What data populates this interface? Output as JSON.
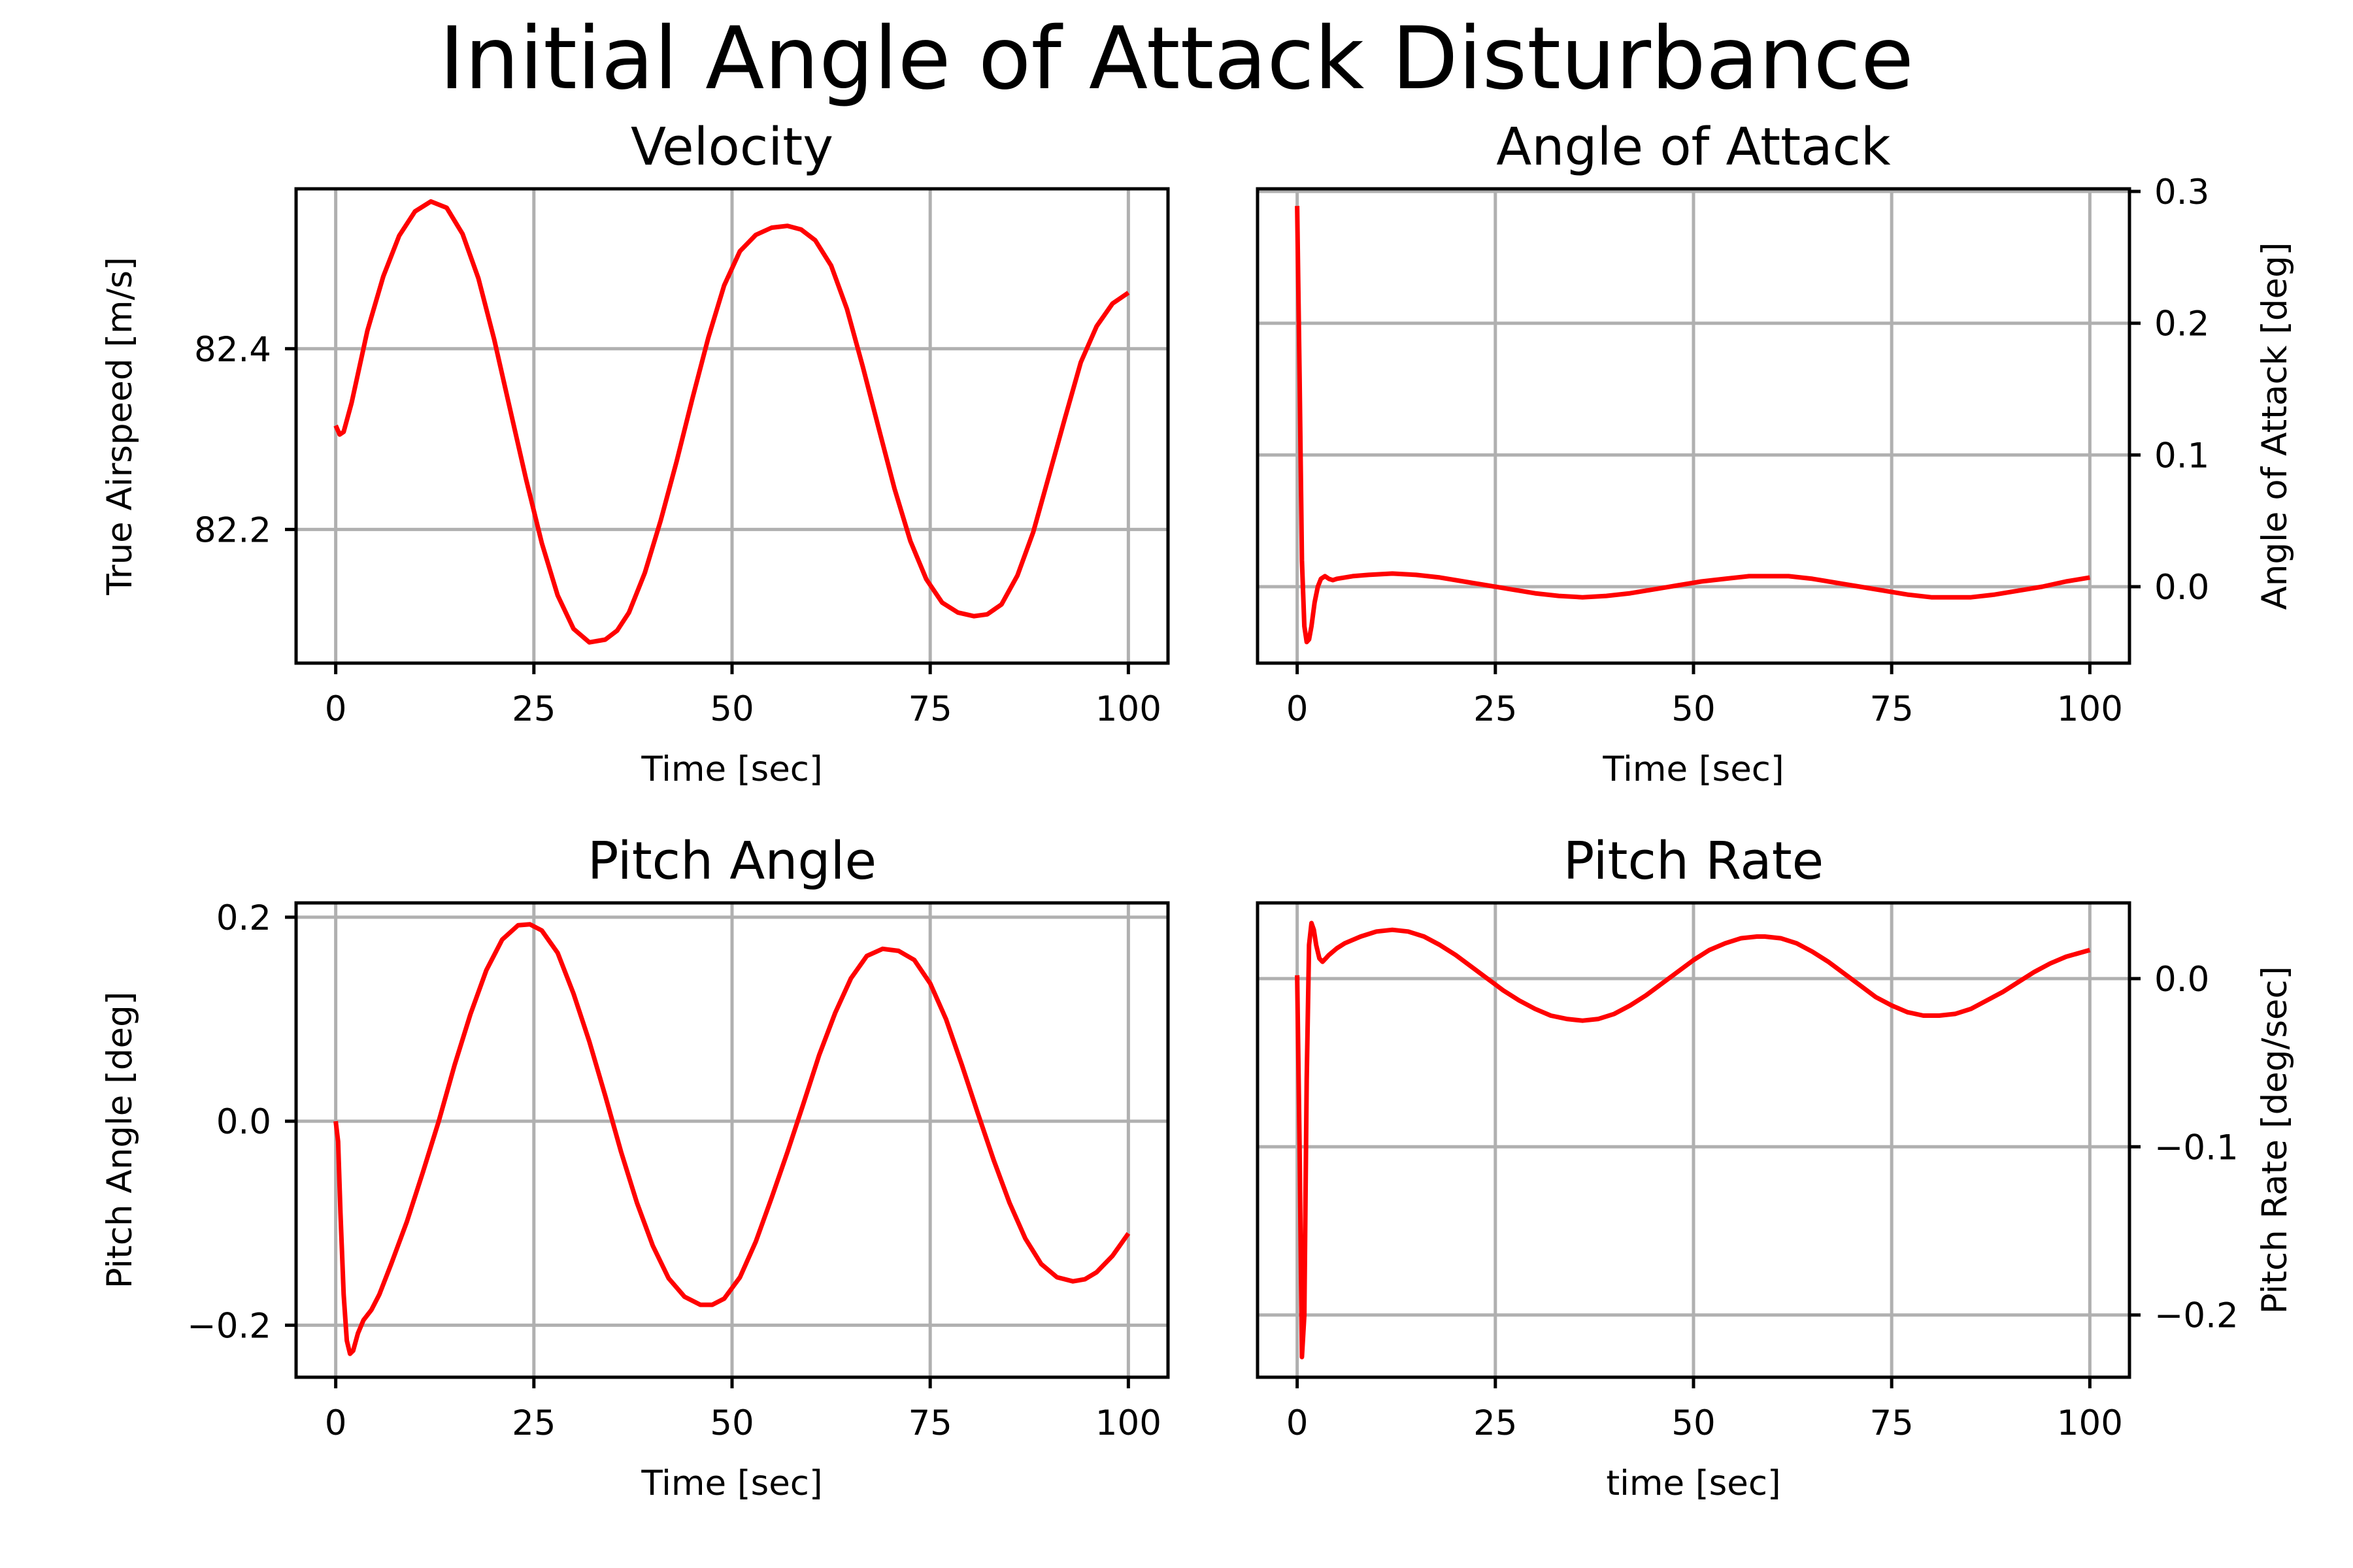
{
  "figure": {
    "suptitle": "Initial Angle of Attack Disturbance",
    "line_color": "#ff0000",
    "grid_color": "#b0b0b0"
  },
  "chart_data": [
    {
      "type": "line",
      "title": "Velocity",
      "xlabel": "Time [sec]",
      "ylabel": "True Airspeed [m/s]",
      "ylabel_side": "left",
      "grid": true,
      "xlim": [
        -5,
        105
      ],
      "ylim": [
        82.052,
        82.577
      ],
      "xticks": [
        0,
        25,
        50,
        75,
        100
      ],
      "xtick_labels": [
        "0",
        "25",
        "50",
        "75",
        "100"
      ],
      "yticks": [
        82.2,
        82.4
      ],
      "ytick_labels": [
        "82.2",
        "82.4"
      ],
      "series": [
        {
          "color": "#ff0000",
          "x": [
            0,
            0.5,
            1,
            2,
            4,
            6,
            8,
            10,
            12,
            14,
            16,
            18,
            20,
            22,
            24,
            26,
            28,
            30,
            32,
            34,
            35.5,
            37,
            39,
            41,
            43,
            45,
            47,
            49,
            51,
            53,
            55,
            57,
            58.7,
            60.5,
            62.5,
            64.5,
            66.5,
            68.5,
            70.5,
            72.5,
            74.5,
            76.5,
            78.5,
            80.5,
            82.2,
            84,
            86,
            88,
            90,
            92,
            94,
            96,
            98,
            100
          ],
          "y": [
            82.315,
            82.305,
            82.308,
            82.34,
            82.42,
            82.48,
            82.525,
            82.552,
            82.563,
            82.556,
            82.527,
            82.478,
            82.41,
            82.333,
            82.256,
            82.185,
            82.127,
            82.09,
            82.075,
            82.078,
            82.088,
            82.108,
            82.152,
            82.21,
            82.275,
            82.345,
            82.412,
            82.47,
            82.508,
            82.526,
            82.534,
            82.536,
            82.532,
            82.52,
            82.492,
            82.444,
            82.38,
            82.312,
            82.245,
            82.187,
            82.145,
            82.119,
            82.108,
            82.104,
            82.106,
            82.117,
            82.149,
            82.197,
            82.26,
            82.323,
            82.385,
            82.425,
            82.45,
            82.462
          ]
        }
      ]
    },
    {
      "type": "line",
      "title": "Angle of Attack",
      "xlabel": "Time [sec]",
      "ylabel": "Angle of Attack [deg]",
      "ylabel_side": "right",
      "grid": true,
      "xlim": [
        -5,
        105
      ],
      "ylim": [
        -0.058,
        0.302
      ],
      "xticks": [
        0,
        25,
        50,
        75,
        100
      ],
      "xtick_labels": [
        "0",
        "25",
        "50",
        "75",
        "100"
      ],
      "yticks": [
        0.0,
        0.1,
        0.2,
        0.3
      ],
      "ytick_labels": [
        "0.0",
        "0.1",
        "0.2",
        "0.3"
      ],
      "series": [
        {
          "color": "#ff0000",
          "x": [
            0,
            0.3,
            0.6,
            0.9,
            1.2,
            1.5,
            1.8,
            2.2,
            2.6,
            3.0,
            3.5,
            4.0,
            4.5,
            5,
            7,
            9,
            12,
            15,
            18,
            21,
            24,
            27,
            30,
            33,
            36,
            39,
            42,
            45,
            48,
            51,
            54,
            57,
            59,
            62,
            65,
            68,
            71,
            74,
            77,
            80,
            82,
            85,
            88,
            91,
            94,
            97,
            100
          ],
          "y": [
            0.289,
            0.16,
            0.02,
            -0.03,
            -0.042,
            -0.04,
            -0.03,
            -0.012,
            0.0,
            0.006,
            0.008,
            0.006,
            0.005,
            0.006,
            0.008,
            0.009,
            0.01,
            0.009,
            0.007,
            0.004,
            0.001,
            -0.002,
            -0.005,
            -0.007,
            -0.008,
            -0.007,
            -0.005,
            -0.002,
            0.001,
            0.004,
            0.006,
            0.008,
            0.008,
            0.008,
            0.006,
            0.003,
            0.0,
            -0.003,
            -0.006,
            -0.008,
            -0.008,
            -0.008,
            -0.006,
            -0.003,
            0.0,
            0.004,
            0.007
          ]
        }
      ]
    },
    {
      "type": "line",
      "title": "Pitch Angle",
      "xlabel": "Time [sec]",
      "ylabel": "Pitch Angle [deg]",
      "ylabel_side": "left",
      "grid": true,
      "xlim": [
        -5,
        105
      ],
      "ylim": [
        -0.251,
        0.214
      ],
      "xticks": [
        0,
        25,
        50,
        75,
        100
      ],
      "xtick_labels": [
        "0",
        "25",
        "50",
        "75",
        "100"
      ],
      "yticks": [
        -0.2,
        0.0,
        0.2
      ],
      "ytick_labels": [
        "−0.2",
        "0.0",
        "0.2"
      ],
      "series": [
        {
          "color": "#ff0000",
          "x": [
            0,
            0.3,
            0.6,
            1,
            1.4,
            1.8,
            2.2,
            2.8,
            3.5,
            4.5,
            5.5,
            7,
            9,
            11,
            13,
            15,
            17,
            19,
            21,
            23,
            24.5,
            26,
            28,
            30,
            32,
            34,
            36,
            38,
            40,
            42,
            44,
            46,
            47.5,
            49,
            51,
            53,
            55,
            57,
            59,
            61,
            63,
            65,
            67,
            69,
            71,
            73,
            75,
            77,
            79,
            81,
            83,
            85,
            87,
            89,
            91,
            93,
            94.5,
            96,
            98,
            100
          ],
          "y": [
            0.0,
            -0.02,
            -0.09,
            -0.17,
            -0.215,
            -0.228,
            -0.225,
            -0.208,
            -0.195,
            -0.185,
            -0.17,
            -0.14,
            -0.098,
            -0.05,
            0.0,
            0.055,
            0.105,
            0.148,
            0.178,
            0.192,
            0.193,
            0.187,
            0.165,
            0.125,
            0.078,
            0.025,
            -0.03,
            -0.08,
            -0.122,
            -0.154,
            -0.172,
            -0.18,
            -0.18,
            -0.174,
            -0.153,
            -0.118,
            -0.075,
            -0.03,
            0.017,
            0.065,
            0.106,
            0.14,
            0.162,
            0.169,
            0.167,
            0.158,
            0.135,
            0.1,
            0.055,
            0.008,
            -0.038,
            -0.08,
            -0.115,
            -0.14,
            -0.153,
            -0.157,
            -0.155,
            -0.148,
            -0.132,
            -0.11
          ]
        }
      ]
    },
    {
      "type": "line",
      "title": "Pitch Rate",
      "xlabel": "time [sec]",
      "ylabel": "Pitch Rate [deg/sec]",
      "ylabel_side": "right",
      "grid": true,
      "xlim": [
        -5,
        105
      ],
      "ylim": [
        -0.237,
        0.045
      ],
      "xticks": [
        0,
        25,
        50,
        75,
        100
      ],
      "xtick_labels": [
        "0",
        "25",
        "50",
        "75",
        "100"
      ],
      "yticks": [
        -0.2,
        -0.1,
        0.0
      ],
      "ytick_labels": [
        "−0.2",
        "−0.1",
        "0.0"
      ],
      "series": [
        {
          "color": "#ff0000",
          "x": [
            0,
            0.3,
            0.6,
            0.9,
            1.2,
            1.5,
            1.8,
            2.1,
            2.4,
            2.8,
            3.2,
            3.6,
            4.0,
            4.5,
            5,
            6,
            8,
            10,
            12,
            14,
            16,
            18,
            20,
            22,
            24,
            26,
            28,
            30,
            32,
            34,
            36,
            38,
            40,
            42,
            44,
            46,
            48,
            50,
            52,
            54,
            56,
            58,
            59,
            61,
            63,
            65,
            67,
            69,
            71,
            73,
            75,
            77,
            79,
            81,
            83,
            85,
            87,
            89,
            91,
            93,
            95,
            97,
            100
          ],
          "y": [
            0.002,
            -0.1,
            -0.225,
            -0.2,
            -0.06,
            0.02,
            0.033,
            0.029,
            0.02,
            0.012,
            0.01,
            0.012,
            0.014,
            0.016,
            0.018,
            0.021,
            0.025,
            0.028,
            0.029,
            0.028,
            0.025,
            0.02,
            0.014,
            0.007,
            0.0,
            -0.007,
            -0.013,
            -0.018,
            -0.022,
            -0.024,
            -0.025,
            -0.024,
            -0.021,
            -0.016,
            -0.01,
            -0.003,
            0.004,
            0.011,
            0.017,
            0.021,
            0.024,
            0.025,
            0.025,
            0.024,
            0.021,
            0.016,
            0.01,
            0.003,
            -0.004,
            -0.011,
            -0.016,
            -0.02,
            -0.022,
            -0.022,
            -0.021,
            -0.018,
            -0.013,
            -0.008,
            -0.002,
            0.004,
            0.009,
            0.013,
            0.017
          ]
        }
      ]
    }
  ]
}
